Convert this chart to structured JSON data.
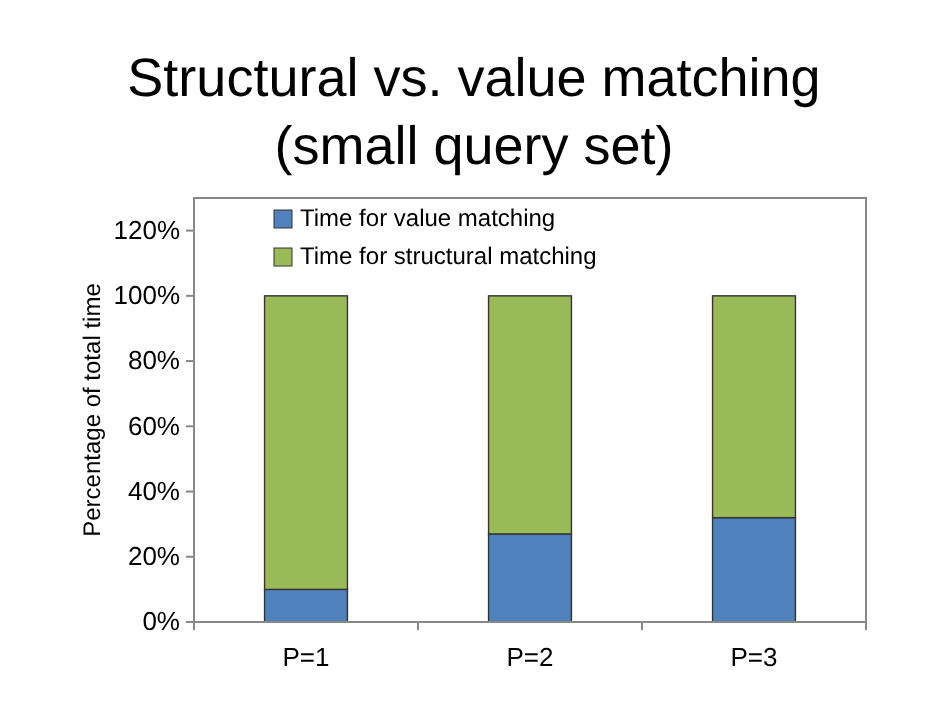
{
  "chart_data": {
    "type": "bar",
    "title": "Structural vs. value matching (small query set)",
    "ylabel": "Percentage of total time",
    "categories": [
      "P=1",
      "P=2",
      "P=3"
    ],
    "stacked": true,
    "series": [
      {
        "name": "Time for value matching",
        "color": "#4f81bd",
        "values": [
          10,
          27,
          32
        ]
      },
      {
        "name": "Time for structural matching",
        "color": "#9bbb59",
        "values": [
          90,
          73,
          68
        ]
      }
    ],
    "ylim": [
      0,
      130
    ],
    "yticks": [
      {
        "value": 0,
        "label": "0%"
      },
      {
        "value": 20,
        "label": "20%"
      },
      {
        "value": 40,
        "label": "40%"
      },
      {
        "value": 60,
        "label": "60%"
      },
      {
        "value": 80,
        "label": "80%"
      },
      {
        "value": 100,
        "label": "100%"
      },
      {
        "value": 120,
        "label": "120%"
      }
    ],
    "legend": "top left",
    "grid": false
  }
}
